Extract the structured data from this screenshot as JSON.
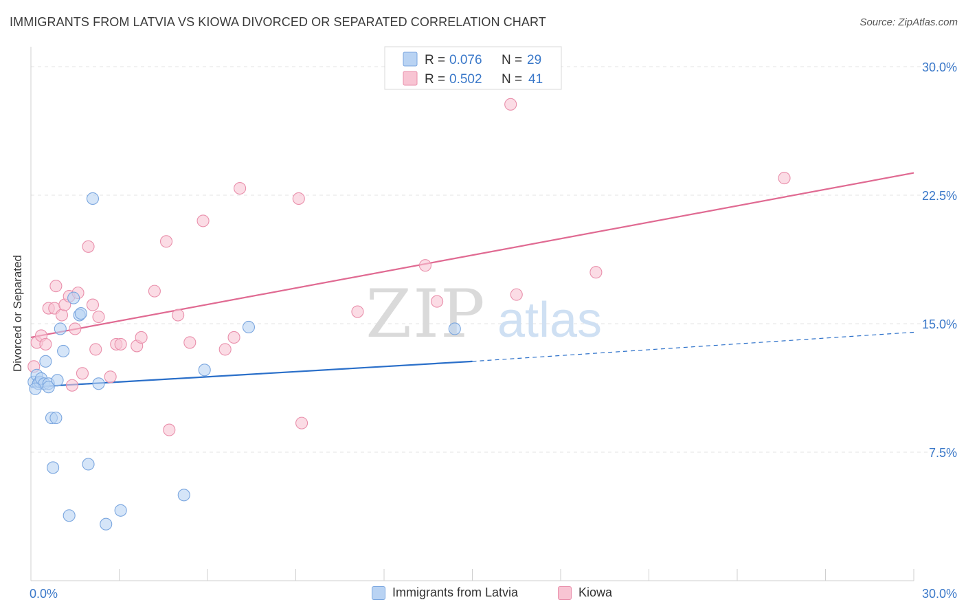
{
  "title": "IMMIGRANTS FROM LATVIA VS KIOWA DIVORCED OR SEPARATED CORRELATION CHART",
  "source": "Source: ZipAtlas.com",
  "watermark": {
    "zip": "ZIP",
    "atlas": "atlas"
  },
  "colors": {
    "blue_fill": "#b9d3f3",
    "blue_stroke": "#7aa6df",
    "blue_line": "#2a6fc9",
    "pink_fill": "#f8c4d3",
    "pink_stroke": "#e98fab",
    "pink_line": "#e06a92",
    "value_text": "#3a78c9",
    "grid": "#e3e3e3"
  },
  "chart_data": {
    "type": "scatter",
    "title": "IMMIGRANTS FROM LATVIA VS KIOWA DIVORCED OR SEPARATED CORRELATION CHART",
    "xlabel": "",
    "ylabel": "Divorced or Separated",
    "xlim": [
      0,
      30
    ],
    "ylim": [
      0,
      30
    ],
    "x_tick_labels": [
      "0.0%",
      "30.0%"
    ],
    "y_ticks": [
      7.5,
      15.0,
      22.5,
      30.0
    ],
    "y_tick_labels": [
      "7.5%",
      "15.0%",
      "22.5%",
      "30.0%"
    ],
    "grid": true,
    "legend_top": [
      {
        "r_label": "R = ",
        "r_value": "0.076",
        "n_label": "N = ",
        "n_value": "29"
      },
      {
        "r_label": "R = ",
        "r_value": "0.502",
        "n_label": "N = ",
        "n_value": "41"
      }
    ],
    "series": [
      {
        "name": "Immigrants from Latvia",
        "color": "blue",
        "points": [
          [
            0.1,
            11.6
          ],
          [
            0.2,
            12.0
          ],
          [
            0.25,
            11.5
          ],
          [
            0.3,
            11.6
          ],
          [
            0.35,
            11.8
          ],
          [
            0.45,
            11.5
          ],
          [
            0.5,
            12.8
          ],
          [
            0.6,
            11.5
          ],
          [
            0.6,
            11.3
          ],
          [
            0.7,
            9.5
          ],
          [
            0.75,
            6.6
          ],
          [
            0.85,
            9.5
          ],
          [
            0.9,
            11.7
          ],
          [
            1.0,
            14.7
          ],
          [
            1.1,
            13.4
          ],
          [
            1.3,
            3.8
          ],
          [
            1.45,
            16.5
          ],
          [
            1.65,
            15.5
          ],
          [
            1.95,
            6.8
          ],
          [
            2.1,
            22.3
          ],
          [
            2.3,
            11.5
          ],
          [
            2.55,
            3.3
          ],
          [
            3.05,
            4.1
          ],
          [
            5.2,
            5.0
          ],
          [
            5.9,
            12.3
          ],
          [
            7.4,
            14.8
          ],
          [
            14.4,
            14.7
          ],
          [
            1.7,
            15.6
          ],
          [
            0.15,
            11.2
          ]
        ],
        "trend": {
          "x": [
            0,
            15
          ],
          "y": [
            11.3,
            12.8
          ],
          "dashed_to": [
            30,
            14.5
          ]
        }
      },
      {
        "name": "Kiowa",
        "color": "pink",
        "points": [
          [
            0.1,
            12.5
          ],
          [
            0.2,
            13.9
          ],
          [
            0.35,
            14.3
          ],
          [
            0.5,
            13.8
          ],
          [
            0.6,
            15.9
          ],
          [
            0.8,
            15.9
          ],
          [
            0.85,
            17.2
          ],
          [
            1.05,
            15.5
          ],
          [
            1.15,
            16.1
          ],
          [
            1.3,
            16.6
          ],
          [
            1.4,
            11.4
          ],
          [
            1.5,
            14.7
          ],
          [
            1.6,
            16.8
          ],
          [
            1.75,
            12.1
          ],
          [
            1.95,
            19.5
          ],
          [
            2.1,
            16.1
          ],
          [
            2.2,
            13.5
          ],
          [
            2.3,
            15.4
          ],
          [
            2.7,
            11.9
          ],
          [
            2.9,
            13.8
          ],
          [
            3.05,
            13.8
          ],
          [
            3.6,
            13.7
          ],
          [
            3.75,
            14.2
          ],
          [
            4.2,
            16.9
          ],
          [
            4.6,
            19.8
          ],
          [
            4.7,
            8.8
          ],
          [
            5.0,
            15.5
          ],
          [
            5.4,
            13.9
          ],
          [
            5.85,
            21.0
          ],
          [
            6.6,
            13.5
          ],
          [
            6.9,
            14.2
          ],
          [
            7.1,
            22.9
          ],
          [
            9.1,
            22.3
          ],
          [
            9.2,
            9.2
          ],
          [
            11.1,
            15.7
          ],
          [
            13.4,
            18.4
          ],
          [
            13.8,
            16.3
          ],
          [
            16.3,
            27.8
          ],
          [
            16.5,
            16.7
          ],
          [
            19.2,
            18.0
          ],
          [
            25.6,
            23.5
          ]
        ],
        "trend": {
          "x": [
            0,
            30
          ],
          "y": [
            14.2,
            23.8
          ]
        }
      }
    ]
  }
}
